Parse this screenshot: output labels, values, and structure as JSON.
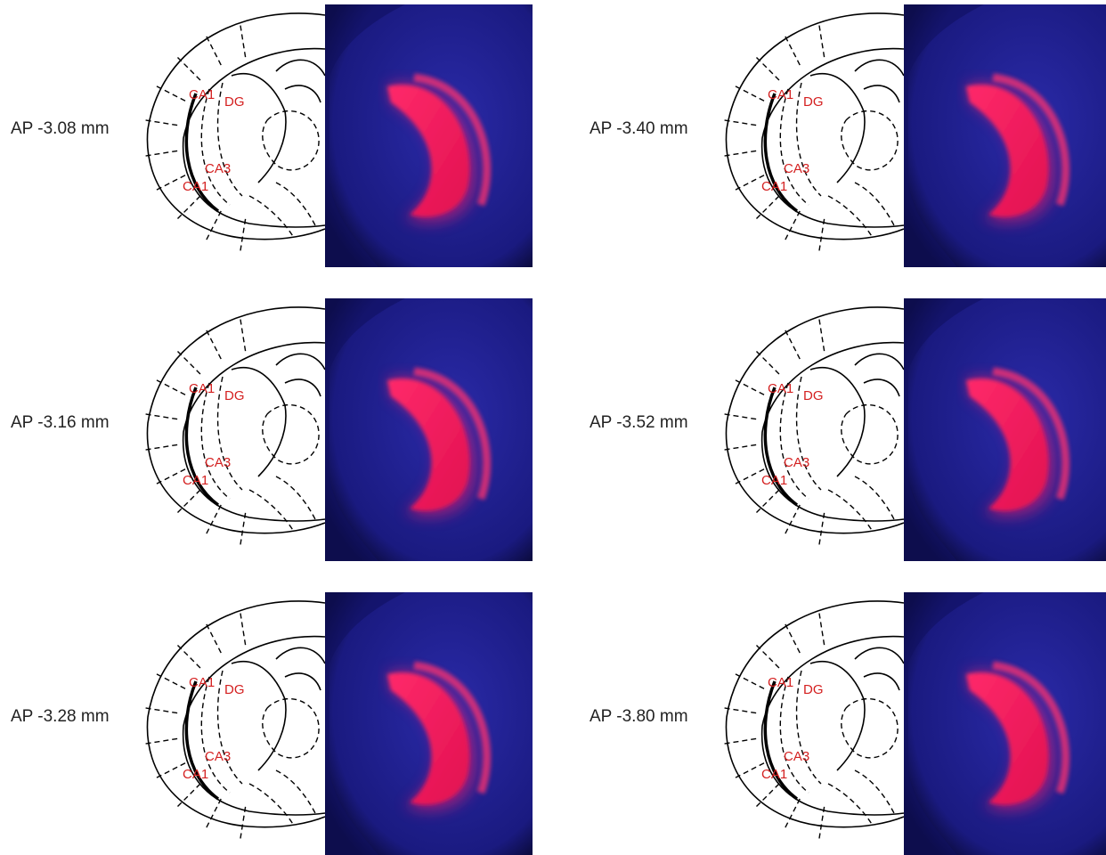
{
  "panels": [
    {
      "label": "AP -3.08 mm",
      "regions": [
        "CA1",
        "DG",
        "CA3",
        "CA1"
      ]
    },
    {
      "label": "AP -3.16 mm",
      "regions": [
        "CA1",
        "DG",
        "CA3",
        "CA1"
      ]
    },
    {
      "label": "AP -3.28 mm",
      "regions": [
        "CA1",
        "DG",
        "CA3",
        "CA1"
      ]
    },
    {
      "label": "AP -3.40 mm",
      "regions": [
        "CA1",
        "DG",
        "CA3",
        "CA1"
      ]
    },
    {
      "label": "AP -3.52 mm",
      "regions": [
        "CA1",
        "DG",
        "CA3",
        "CA1"
      ]
    },
    {
      "label": "AP -3.80 mm",
      "regions": [
        "CA1",
        "DG",
        "CA3",
        "CA1"
      ]
    }
  ]
}
